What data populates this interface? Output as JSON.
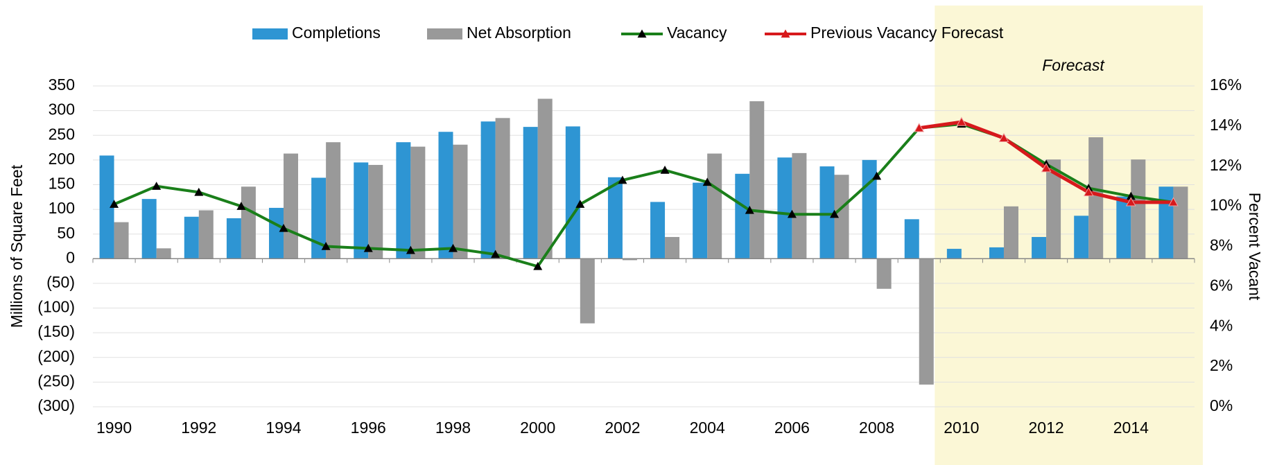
{
  "chart_data": {
    "type": "bar-line",
    "y_label": "Millions of Square Feet",
    "y2_label": "Percent Vacant",
    "annotation": "Forecast",
    "legend": "top",
    "grid": true,
    "categories": [
      "1990",
      null,
      "1992",
      null,
      "1994",
      null,
      "1996",
      null,
      "1998",
      null,
      "2000",
      null,
      "2002",
      null,
      "2004",
      null,
      "2006",
      null,
      "2008",
      null,
      "2010",
      null,
      "2012",
      null,
      "2014",
      null
    ],
    "ylim": [
      -300,
      350
    ],
    "yticks": [
      {
        "value": -300,
        "label": "(300)"
      },
      {
        "value": -250,
        "label": "(250)"
      },
      {
        "value": -200,
        "label": "(200)"
      },
      {
        "value": -150,
        "label": "(150)"
      },
      {
        "value": -100,
        "label": "(100)"
      },
      {
        "value": -50,
        "label": "(50)"
      },
      0,
      50,
      100,
      150,
      200,
      250,
      300,
      350
    ],
    "y2lim": [
      0,
      16
    ],
    "y2ticks": [
      {
        "value": 0,
        "label": "0%"
      },
      {
        "value": 2,
        "label": "2%"
      },
      {
        "value": 4,
        "label": "4%"
      },
      {
        "value": 6,
        "label": "6%"
      },
      {
        "value": 8,
        "label": "8%"
      },
      {
        "value": 10,
        "label": "10%"
      },
      {
        "value": 12,
        "label": "12%"
      },
      {
        "value": 14,
        "label": "14%"
      },
      {
        "value": 16,
        "label": "16%"
      }
    ],
    "series": [
      {
        "name": "Completions",
        "kind": "bar",
        "color": "#2e95d3",
        "values": [
          209,
          121,
          85,
          82,
          103,
          164,
          195,
          236,
          257,
          278,
          267,
          268,
          165,
          115,
          154,
          172,
          205,
          187,
          200,
          80,
          20,
          23,
          44,
          87,
          126,
          146
        ]
      },
      {
        "name": "Net Absorption",
        "kind": "bar",
        "color": "#999999",
        "values": [
          74,
          21,
          98,
          146,
          213,
          236,
          190,
          227,
          231,
          285,
          324,
          -131,
          -3,
          44,
          213,
          319,
          214,
          170,
          -61,
          -255,
          0,
          106,
          201,
          246,
          201,
          146
        ]
      },
      {
        "name": "Vacancy",
        "kind": "line",
        "axis": "y2",
        "color": "#1a7f1a",
        "marker_color": "#000000",
        "values": [
          10.1,
          11.0,
          10.7,
          10.0,
          8.9,
          8.0,
          7.9,
          7.8,
          7.9,
          7.6,
          7.0,
          10.1,
          11.3,
          11.8,
          11.2,
          9.8,
          9.6,
          9.6,
          11.5,
          13.9,
          14.1,
          13.4,
          12.1,
          10.9,
          10.5,
          10.2
        ]
      },
      {
        "name": "Previous Vacancy Forecast",
        "kind": "line",
        "axis": "y2",
        "color": "#d7191c",
        "marker_color": "#d7191c",
        "values": [
          null,
          null,
          null,
          null,
          null,
          null,
          null,
          null,
          null,
          null,
          null,
          null,
          null,
          null,
          null,
          null,
          null,
          null,
          null,
          13.9,
          14.2,
          13.4,
          11.9,
          10.7,
          10.2,
          10.2
        ]
      }
    ]
  }
}
